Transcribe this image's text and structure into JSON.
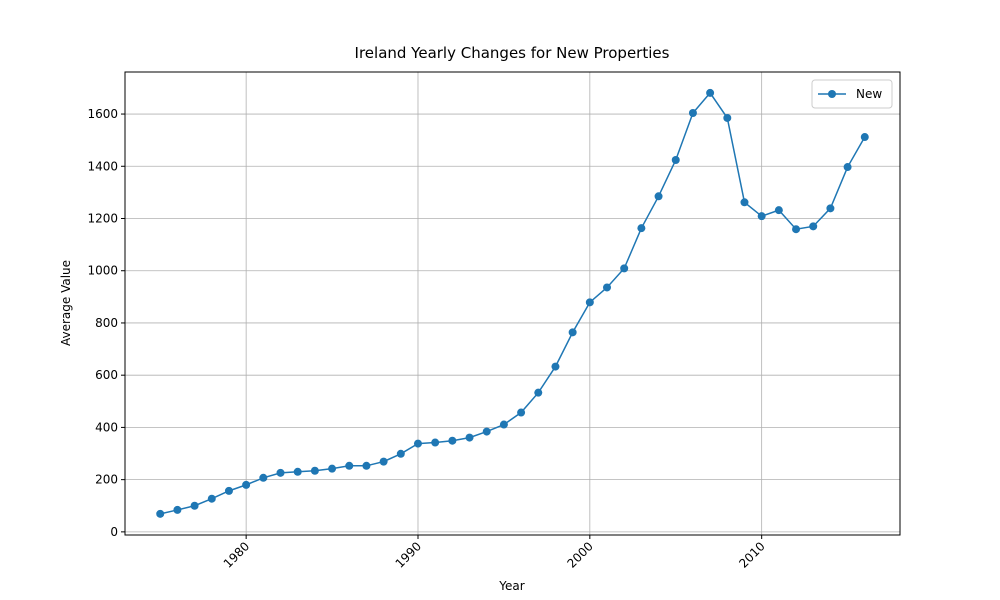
{
  "chart_data": {
    "type": "line",
    "title": "Ireland Yearly Changes for New Properties",
    "xlabel": "Year",
    "ylabel": "Average Value",
    "x": [
      1975,
      1976,
      1977,
      1978,
      1979,
      1980,
      1981,
      1982,
      1983,
      1984,
      1985,
      1986,
      1987,
      1988,
      1989,
      1990,
      1991,
      1992,
      1993,
      1994,
      1995,
      1996,
      1997,
      1998,
      1999,
      2000,
      2001,
      2002,
      2003,
      2004,
      2005,
      2006,
      2007,
      2008,
      2009,
      2010,
      2011,
      2012,
      2013,
      2014,
      2015,
      2016
    ],
    "series": [
      {
        "name": "New",
        "color": "#1f77b4",
        "values": [
          69,
          84,
          100,
          127,
          157,
          180,
          207,
          226,
          230,
          234,
          242,
          253,
          253,
          269,
          299,
          338,
          342,
          349,
          361,
          384,
          411,
          457,
          533,
          633,
          764,
          879,
          936,
          1009,
          1163,
          1285,
          1424,
          1604,
          1681,
          1585,
          1262,
          1209,
          1232,
          1159,
          1170,
          1239,
          1397,
          1512
        ]
      }
    ],
    "xlim": [
      1972.95,
      2018.05
    ],
    "xticks": [
      1980,
      1990,
      2000,
      2010
    ],
    "ylim": [
      -12,
      1761
    ],
    "yticks": [
      0,
      200,
      400,
      600,
      800,
      1000,
      1200,
      1400,
      1600
    ],
    "grid": true,
    "legend": "upper right"
  }
}
